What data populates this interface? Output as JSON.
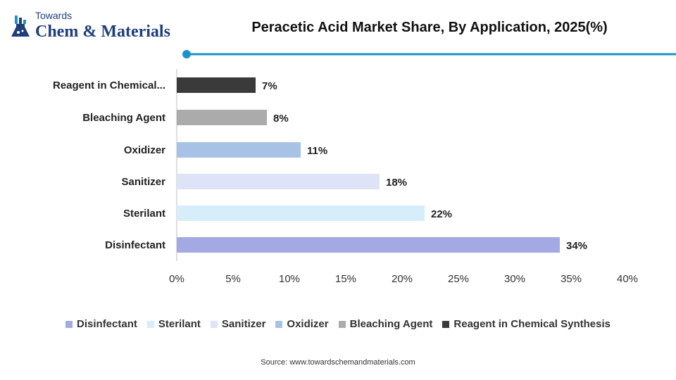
{
  "brand": {
    "top": "Towards",
    "main": "Chem & Materials",
    "accent_color": "#1a93c9",
    "logo_color": "#1d3f7a"
  },
  "chart_data": {
    "type": "bar",
    "orientation": "horizontal",
    "title": "Peracetic Acid Market Share, By Application, 2025(%)",
    "categories": [
      "Disinfectant",
      "Sterilant",
      "Sanitizer",
      "Oxidizer",
      "Bleaching Agent",
      "Reagent in Chemical Synthesis"
    ],
    "axis_labels": [
      "Disinfectant",
      "Sterilant",
      "Sanitizer",
      "Oxidizer",
      "Bleaching Agent",
      "Reagent in Chemical..."
    ],
    "values": [
      34,
      22,
      18,
      11,
      8,
      7
    ],
    "data_labels": [
      "34%",
      "22%",
      "18%",
      "11%",
      "8%",
      "7%"
    ],
    "colors": [
      "#a3a9e2",
      "#d6eefa",
      "#dfe3f7",
      "#a6c3e6",
      "#ababab",
      "#3a3a3a"
    ],
    "xlim": [
      0,
      40
    ],
    "xticks": [
      0,
      5,
      10,
      15,
      20,
      25,
      30,
      35,
      40
    ],
    "xtick_labels": [
      "0%",
      "5%",
      "10%",
      "15%",
      "20%",
      "25%",
      "30%",
      "35%",
      "40%"
    ],
    "grid": false,
    "legend_position": "bottom"
  },
  "source": "Source: www.towardschemandmaterials.com"
}
